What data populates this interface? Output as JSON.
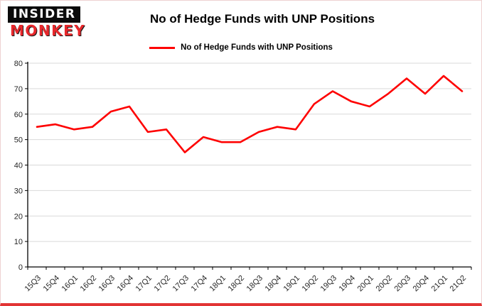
{
  "logo": {
    "line1": "INSIDER",
    "line2": "MONKEY"
  },
  "chart_data": {
    "type": "line",
    "title": "No of Hedge Funds with UNP Positions",
    "legend_position": "top",
    "grid": true,
    "ylim": [
      0,
      80
    ],
    "ytick_step": 10,
    "categories": [
      "15Q3",
      "15Q4",
      "16Q1",
      "16Q2",
      "16Q3",
      "16Q4",
      "17Q1",
      "17Q2",
      "17Q3",
      "17Q4",
      "18Q1",
      "18Q2",
      "18Q3",
      "18Q4",
      "19Q1",
      "19Q2",
      "19Q3",
      "19Q4",
      "20Q1",
      "20Q2",
      "20Q3",
      "20Q4",
      "21Q1",
      "21Q2"
    ],
    "series": [
      {
        "name": "No of Hedge Funds with UNP Positions",
        "color": "#fe0000",
        "values": [
          55,
          56,
          54,
          55,
          61,
          63,
          53,
          54,
          45,
          51,
          49,
          49,
          53,
          55,
          54,
          64,
          69,
          65,
          63,
          68,
          74,
          68,
          75,
          69
        ]
      }
    ],
    "colors": {
      "gridline": "#d9d9d9",
      "axis": "#000000",
      "tick_label": "#262626",
      "accent_red": "#e23434"
    }
  }
}
